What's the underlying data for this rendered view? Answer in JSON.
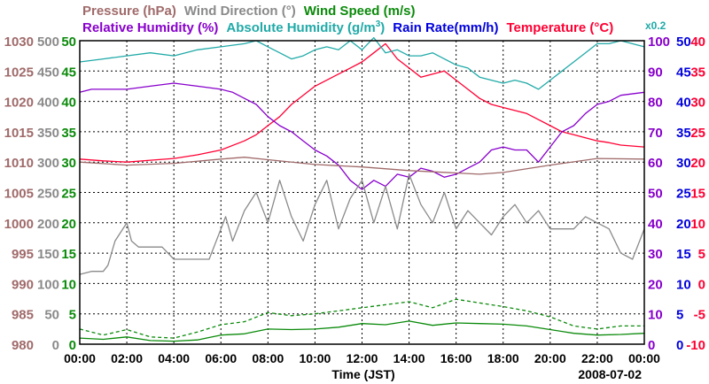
{
  "chart_data": {
    "type": "line",
    "date": "2008-07-02",
    "xlabel": "Time (JST)",
    "x_ticks": [
      "00:00",
      "02:00",
      "04:00",
      "06:00",
      "08:00",
      "10:00",
      "12:00",
      "14:00",
      "16:00",
      "18:00",
      "20:00",
      "22:00",
      "00:00"
    ],
    "x_range_hours": [
      0,
      24
    ],
    "legend_row1": [
      {
        "name": "Pressure (hPa)",
        "color": "#a06a6a"
      },
      {
        "name": "Wind Direction (°)",
        "color": "#8a8a8a"
      },
      {
        "name": "Wind Speed (m/s)",
        "color": "#0a8a0a"
      }
    ],
    "legend_row2": [
      {
        "name": "Relative Humidity (%)",
        "color": "#8800cc"
      },
      {
        "name": "Absolute Humidity (g/m",
        "sup": "3",
        "close": ")",
        "color": "#20aaa8"
      },
      {
        "name": "Rain Rate(mm/h)",
        "color": "#0000dd"
      },
      {
        "name": "Temperature (°C)",
        "color": "#ff0033"
      }
    ],
    "scale_note": "x0.2",
    "axes": {
      "pressure": {
        "ticks": [
          "1030",
          "1025",
          "1020",
          "1015",
          "1010",
          "1005",
          "1000",
          "995",
          "990",
          "985",
          "980"
        ],
        "range": [
          980,
          1030
        ],
        "color": "#a06a6a"
      },
      "wind_direction": {
        "ticks": [
          "500",
          "450",
          "400",
          "350",
          "300",
          "250",
          "200",
          "150",
          "100",
          "50",
          "0"
        ],
        "range": [
          0,
          500
        ],
        "color": "#8a8a8a"
      },
      "wind_speed": {
        "ticks": [
          "50",
          "45",
          "40",
          "35",
          "30",
          "25",
          "20",
          "15",
          "10",
          "5",
          "0"
        ],
        "range": [
          0,
          50
        ],
        "color": "#0a8a0a"
      },
      "humidity": {
        "ticks": [
          "100",
          "90",
          "80",
          "70",
          "60",
          "50",
          "40",
          "30",
          "20",
          "10",
          "0"
        ],
        "range": [
          0,
          100
        ],
        "color": "#8800cc"
      },
      "rain": {
        "ticks": [
          "50",
          "45",
          "40",
          "35",
          "30",
          "25",
          "20",
          "15",
          "10",
          "5",
          "0"
        ],
        "range": [
          0,
          50
        ],
        "color": "#0000dd"
      },
      "temperature": {
        "ticks": [
          "40",
          "35",
          "30",
          "25",
          "20",
          "15",
          "10",
          "5",
          "0",
          "-5",
          "-10"
        ],
        "range": [
          -10,
          40
        ],
        "color": "#ff0033"
      }
    },
    "series": [
      {
        "name": "Temperature (°C)",
        "axis": "temperature",
        "color": "#ff0033",
        "x": [
          0,
          1,
          2,
          3,
          4,
          5,
          6,
          7,
          7.5,
          8,
          8.5,
          9,
          9.5,
          10,
          10.5,
          11,
          11.5,
          12,
          12.5,
          13,
          13.5,
          14,
          14.5,
          15,
          15.5,
          16,
          16.5,
          17,
          17.5,
          18,
          18.5,
          19,
          19.5,
          20,
          20.5,
          21,
          21.5,
          22,
          22.5,
          23,
          24
        ],
        "y": [
          20.5,
          20.2,
          20.0,
          20.3,
          20.6,
          21.2,
          22.0,
          23.5,
          24.5,
          26.0,
          27.5,
          29.5,
          31.0,
          32.5,
          33.5,
          34.5,
          35.5,
          36.5,
          38.0,
          39.5,
          37.0,
          35.5,
          34.0,
          34.5,
          35.0,
          33.5,
          32.0,
          30.5,
          29.5,
          29.0,
          28.5,
          28.0,
          27.0,
          26.0,
          25.0,
          24.5,
          24.0,
          23.5,
          23.2,
          22.8,
          22.5
        ]
      },
      {
        "name": "Absolute Humidity (g/m3)",
        "axis": "temperature",
        "color": "#20aaa8",
        "x": [
          0,
          1,
          2,
          3,
          4,
          5,
          6,
          7,
          7.5,
          8,
          8.5,
          9,
          9.5,
          10,
          10.5,
          11,
          11.5,
          12,
          12.5,
          13,
          13.5,
          14,
          14.5,
          15,
          15.5,
          16,
          16.5,
          17,
          17.5,
          18,
          18.5,
          19,
          19.5,
          20,
          20.5,
          21,
          21.5,
          22,
          22.5,
          23,
          24
        ],
        "y": [
          36.5,
          37.0,
          37.5,
          38.0,
          37.5,
          38.5,
          39.0,
          39.5,
          40.0,
          39.0,
          38.0,
          37.0,
          37.5,
          38.5,
          39.0,
          38.5,
          40.0,
          38.5,
          40.5,
          38.0,
          38.5,
          37.5,
          37.5,
          38.0,
          37.0,
          36.0,
          35.5,
          34.0,
          33.5,
          33.0,
          33.5,
          33.0,
          32.0,
          33.5,
          35.0,
          36.5,
          38.0,
          39.5,
          39.5,
          40.0,
          39.0
        ]
      },
      {
        "name": "Relative Humidity (%)",
        "axis": "humidity",
        "color": "#8800cc",
        "x": [
          0,
          0.5,
          1,
          2,
          3,
          4,
          5,
          6,
          6.5,
          7,
          7.5,
          8,
          8.5,
          9,
          9.5,
          10,
          10.5,
          11,
          11.5,
          12,
          12.5,
          13,
          13.5,
          14,
          14.5,
          15,
          15.5,
          16,
          16.5,
          17,
          17.5,
          18,
          18.5,
          19,
          19.5,
          20,
          20.5,
          21,
          21.5,
          22,
          22.5,
          23,
          24
        ],
        "y": [
          83,
          84,
          84,
          84,
          85,
          86,
          85,
          84,
          83,
          81,
          79,
          75,
          72,
          70,
          67,
          64,
          62,
          59,
          54,
          51,
          54,
          52,
          56,
          55,
          58,
          57,
          55,
          56,
          58,
          60,
          64,
          65,
          64,
          64,
          60,
          65,
          70,
          72,
          76,
          79,
          80,
          82,
          83
        ]
      },
      {
        "name": "Pressure (hPa)",
        "axis": "pressure",
        "color": "#a06a6a",
        "x": [
          0,
          2,
          4,
          6,
          7,
          8,
          10,
          12,
          14,
          16,
          17,
          18,
          20,
          22,
          24
        ],
        "y": [
          1010.0,
          1009.5,
          1009.8,
          1010.5,
          1010.8,
          1010.4,
          1009.6,
          1009.2,
          1008.6,
          1008.2,
          1008.0,
          1008.3,
          1009.5,
          1010.6,
          1010.5
        ]
      },
      {
        "name": "Wind Direction (°)",
        "axis": "wind_direction",
        "color": "#8a8a8a",
        "x": [
          0,
          0.5,
          1,
          1.2,
          1.5,
          2,
          2.2,
          2.5,
          3,
          3.5,
          4,
          4.5,
          5,
          5.5,
          6,
          6.2,
          6.5,
          7,
          7.5,
          8,
          8.5,
          9,
          9.5,
          10,
          10.5,
          11,
          11.5,
          12,
          12.5,
          13,
          13.5,
          14,
          14.5,
          15,
          15.5,
          16,
          16.5,
          17,
          17.5,
          18,
          18.5,
          19,
          19.5,
          20,
          20.5,
          21,
          21.5,
          22,
          22.5,
          23,
          23.5,
          24
        ],
        "y": [
          115,
          120,
          120,
          130,
          170,
          200,
          170,
          160,
          160,
          160,
          140,
          140,
          140,
          140,
          190,
          210,
          170,
          220,
          250,
          200,
          270,
          210,
          170,
          230,
          270,
          190,
          240,
          270,
          200,
          260,
          190,
          280,
          230,
          200,
          250,
          190,
          220,
          200,
          180,
          210,
          230,
          200,
          220,
          190,
          190,
          190,
          210,
          200,
          190,
          150,
          140,
          190
        ]
      },
      {
        "name": "Wind Speed (m/s) solid",
        "axis": "wind_speed",
        "color": "#0a8a0a",
        "style": "solid",
        "x": [
          0,
          1,
          2,
          3,
          4,
          5,
          6,
          7,
          8,
          9,
          10,
          11,
          12,
          13,
          14,
          15,
          16,
          17,
          18,
          19,
          20,
          21,
          22,
          23,
          24
        ],
        "y": [
          1.0,
          0.8,
          1.2,
          0.6,
          0.5,
          0.7,
          1.5,
          1.7,
          2.5,
          2.4,
          2.5,
          2.8,
          3.4,
          3.2,
          3.8,
          3.1,
          3.5,
          3.4,
          3.3,
          3.0,
          2.4,
          1.8,
          1.5,
          1.6,
          1.8
        ]
      },
      {
        "name": "Wind Speed (m/s) dashed",
        "axis": "wind_speed",
        "color": "#0a8a0a",
        "style": "dashed",
        "x": [
          0,
          1,
          2,
          3,
          4,
          5,
          6,
          7,
          8,
          9,
          10,
          11,
          12,
          13,
          14,
          15,
          16,
          17,
          18,
          19,
          20,
          21,
          22,
          23,
          24
        ],
        "y": [
          2.5,
          1.5,
          2.4,
          1.2,
          1.0,
          2.0,
          3.2,
          3.7,
          5.2,
          4.7,
          5.0,
          5.5,
          6.0,
          6.5,
          7.0,
          6.0,
          7.4,
          6.8,
          6.2,
          5.5,
          4.5,
          3.0,
          2.5,
          3.0,
          3.0
        ]
      }
    ]
  }
}
